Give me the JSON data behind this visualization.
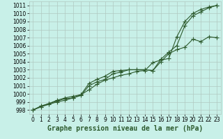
{
  "title": "Graphe pression niveau de la mer (hPa)",
  "x": [
    0,
    1,
    2,
    3,
    4,
    5,
    6,
    7,
    8,
    9,
    10,
    11,
    12,
    13,
    14,
    15,
    16,
    17,
    18,
    19,
    20,
    21,
    22,
    23
  ],
  "line1": [
    998.0,
    998.5,
    998.8,
    999.2,
    999.5,
    999.7,
    999.9,
    1000.5,
    1001.2,
    1001.7,
    1002.0,
    1002.3,
    1002.5,
    1002.8,
    1002.9,
    1003.9,
    1004.2,
    1004.4,
    1007.1,
    1009.0,
    1010.0,
    1010.5,
    1010.8,
    1011.0
  ],
  "line2": [
    998.0,
    998.4,
    998.8,
    999.1,
    999.4,
    999.5,
    999.9,
    1001.3,
    1001.8,
    1002.2,
    1002.8,
    1002.9,
    1003.0,
    1003.0,
    1003.0,
    1002.9,
    1004.0,
    1005.0,
    1005.5,
    1005.8,
    1006.8,
    1006.5,
    1007.1,
    1007.0
  ],
  "line3": [
    998.0,
    998.4,
    998.7,
    999.0,
    999.2,
    999.5,
    999.8,
    1001.0,
    1001.5,
    1001.8,
    1002.5,
    1002.7,
    1003.0,
    1003.0,
    1003.0,
    1002.9,
    1004.3,
    1005.2,
    1006.0,
    1008.5,
    1009.7,
    1010.2,
    1010.7,
    1011.0
  ],
  "ylim": [
    997.5,
    1011.5
  ],
  "xlim": [
    -0.5,
    23.5
  ],
  "yticks": [
    998,
    999,
    1000,
    1001,
    1002,
    1003,
    1004,
    1005,
    1006,
    1007,
    1008,
    1009,
    1010,
    1011
  ],
  "line_color": "#2d5a2d",
  "bg_color": "#c8f0e8",
  "grid_color": "#b0c8c0",
  "marker": "+",
  "markersize": 4,
  "linewidth": 0.8,
  "title_fontsize": 7.0,
  "tick_fontsize": 5.5
}
